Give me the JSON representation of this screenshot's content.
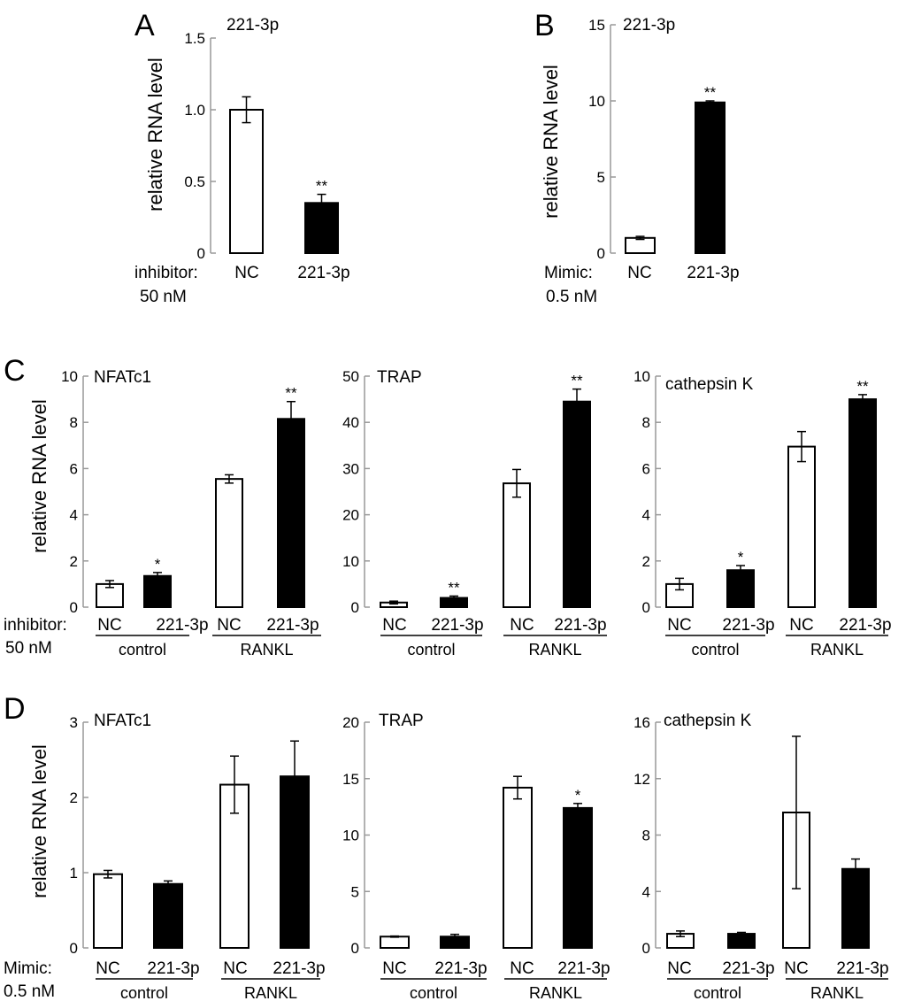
{
  "panel_labels": {
    "A": "A",
    "B": "B",
    "C": "C",
    "D": "D"
  },
  "shared": {
    "ylabel": "relative RNA  level",
    "inhibitor_label": "inhibitor:",
    "inhibitor_conc": "50 nM",
    "mimic_label": "Mimic:",
    "mimic_conc": "0.5 nM",
    "group_control": "control",
    "group_rankl": "RANKL"
  },
  "chart_data": [
    {
      "id": "A",
      "type": "bar",
      "title": "221-3p",
      "ylabel": "relative RNA  level",
      "ylim": [
        0,
        1.5
      ],
      "yticks": [
        "0",
        "0.5",
        "1.0",
        "1.5"
      ],
      "categories": [
        "NC",
        "221-3p"
      ],
      "values": [
        1.0,
        0.35
      ],
      "errors": [
        0.09,
        0.06
      ],
      "fills": [
        "white",
        "black"
      ],
      "significance": [
        "",
        "**"
      ],
      "treatment": "inhibitor: 50 nM"
    },
    {
      "id": "B",
      "type": "bar",
      "title": "221-3p",
      "ylabel": "relative RNA  level",
      "ylim": [
        0,
        15
      ],
      "yticks": [
        "0",
        "5",
        "10",
        "15"
      ],
      "categories": [
        "NC",
        "221-3p"
      ],
      "values": [
        1.0,
        9.9
      ],
      "errors": [
        0.1,
        0.1
      ],
      "fills": [
        "white",
        "black"
      ],
      "significance": [
        "",
        "**"
      ],
      "treatment": "Mimic: 0.5 nM"
    },
    {
      "id": "C1",
      "type": "bar",
      "title": "NFATc1",
      "ylabel": "relative RNA  level",
      "ylim": [
        0,
        10
      ],
      "yticks": [
        "0",
        "2",
        "4",
        "6",
        "8",
        "10"
      ],
      "categories": [
        "NC",
        "221-3p",
        "NC",
        "221-3p"
      ],
      "groups": [
        "control",
        "RANKL"
      ],
      "values": [
        1.0,
        1.35,
        5.55,
        8.15
      ],
      "errors": [
        0.15,
        0.15,
        0.18,
        0.75
      ],
      "fills": [
        "white",
        "black",
        "white",
        "black"
      ],
      "significance": [
        "",
        "*",
        "",
        "**"
      ]
    },
    {
      "id": "C2",
      "type": "bar",
      "title": "TRAP",
      "ylim": [
        0,
        50
      ],
      "yticks": [
        "0",
        "10",
        "20",
        "30",
        "40",
        "50"
      ],
      "categories": [
        "NC",
        "221-3p",
        "NC",
        "221-3p"
      ],
      "groups": [
        "control",
        "RANKL"
      ],
      "values": [
        1.0,
        2.0,
        26.8,
        44.5
      ],
      "errors": [
        0.3,
        0.4,
        3.0,
        2.7
      ],
      "fills": [
        "white",
        "black",
        "white",
        "black"
      ],
      "significance": [
        "",
        "**",
        "",
        "**"
      ]
    },
    {
      "id": "C3",
      "type": "bar",
      "title": "cathepsin K",
      "ylim": [
        0,
        10
      ],
      "yticks": [
        "0",
        "2",
        "4",
        "6",
        "8",
        "10"
      ],
      "categories": [
        "NC",
        "221-3p",
        "NC",
        "221-3p"
      ],
      "groups": [
        "control",
        "RANKL"
      ],
      "values": [
        1.0,
        1.6,
        6.95,
        9.0
      ],
      "errors": [
        0.25,
        0.2,
        0.65,
        0.2
      ],
      "fills": [
        "white",
        "black",
        "white",
        "black"
      ],
      "significance": [
        "",
        "*",
        "",
        "**"
      ]
    },
    {
      "id": "D1",
      "type": "bar",
      "title": "NFATc1",
      "ylabel": "relative RNA  level",
      "ylim": [
        0,
        3
      ],
      "yticks": [
        "0",
        "1",
        "2",
        "3"
      ],
      "categories": [
        "NC",
        "221-3p",
        "NC",
        "221-3p"
      ],
      "groups": [
        "control",
        "RANKL"
      ],
      "values": [
        0.98,
        0.85,
        2.17,
        2.28
      ],
      "errors": [
        0.05,
        0.04,
        0.38,
        0.47
      ],
      "fills": [
        "white",
        "black",
        "white",
        "black"
      ],
      "significance": [
        "",
        "",
        "",
        ""
      ]
    },
    {
      "id": "D2",
      "type": "bar",
      "title": "TRAP",
      "ylim": [
        0,
        20
      ],
      "yticks": [
        "0",
        "5",
        "10",
        "15",
        "20"
      ],
      "categories": [
        "NC",
        "221-3p",
        "NC",
        "221-3p"
      ],
      "groups": [
        "control",
        "RANKL"
      ],
      "values": [
        1.0,
        1.0,
        14.2,
        12.4
      ],
      "errors": [
        0.05,
        0.2,
        1.0,
        0.4
      ],
      "fills": [
        "white",
        "black",
        "white",
        "black"
      ],
      "significance": [
        "",
        "",
        "",
        "*"
      ]
    },
    {
      "id": "D3",
      "type": "bar",
      "title": "cathepsin K",
      "ylim": [
        0,
        16
      ],
      "yticks": [
        "0",
        "4",
        "8",
        "12",
        "16"
      ],
      "categories": [
        "NC",
        "221-3p",
        "NC",
        "221-3p"
      ],
      "groups": [
        "control",
        "RANKL"
      ],
      "values": [
        1.0,
        1.0,
        9.6,
        5.6
      ],
      "errors": [
        0.2,
        0.1,
        5.4,
        0.7
      ],
      "fills": [
        "white",
        "black",
        "white",
        "black"
      ],
      "significance": [
        "",
        "",
        "",
        ""
      ]
    }
  ]
}
